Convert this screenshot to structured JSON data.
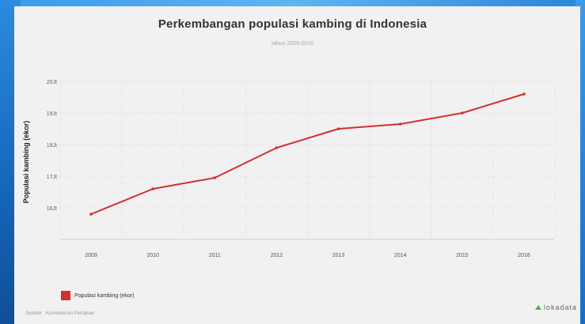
{
  "chart_data": {
    "type": "line",
    "title": "Perkembangan populasi kambing di Indonesia",
    "subtitle": "tahun 2009-2016",
    "xlabel": "",
    "ylabel": "Populasi kambing (ekor)",
    "categories": [
      "2009",
      "2010",
      "2011",
      "2012",
      "2013",
      "2014",
      "2015",
      "2016"
    ],
    "series": [
      {
        "name": "Populasi kambing (ekor)",
        "values": [
          15.8,
          16.6,
          16.95,
          17.9,
          18.5,
          18.65,
          19.0,
          19.6
        ],
        "color": "#d32f2f"
      }
    ],
    "yticks": [
      16,
      17,
      18,
      19,
      20
    ],
    "ytick_labels": [
      "16Jt",
      "17Jt",
      "18Jt",
      "19Jt",
      "20Jt"
    ],
    "ylim": [
      15,
      20
    ],
    "grid": true,
    "legend_position": "bottom-left"
  },
  "footer": {
    "source": "Sumber : Kementerian Pertanian",
    "brand": "lokadata"
  },
  "colors": {
    "background": "#f1f1f1",
    "line": "#d32f2f",
    "grid": "#e0e0e0"
  }
}
